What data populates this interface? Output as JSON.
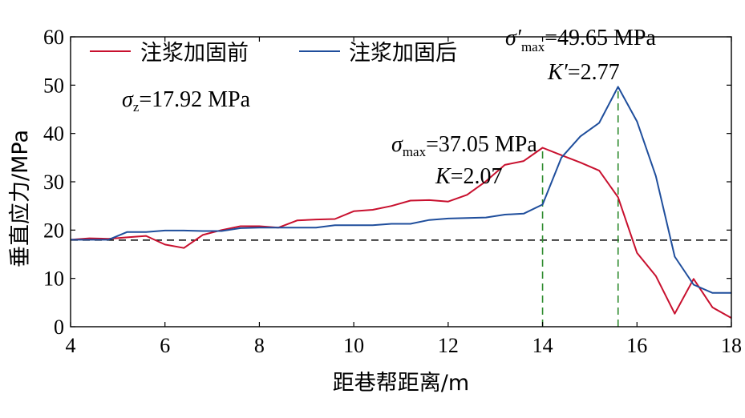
{
  "chart_data": {
    "type": "line",
    "xlabel": "距巷帮距离/m",
    "ylabel": "垂直应力/MPa",
    "xlim": [
      4,
      18
    ],
    "ylim": [
      0,
      60
    ],
    "x_ticks": [
      4,
      6,
      8,
      10,
      12,
      14,
      16,
      18
    ],
    "y_ticks": [
      0,
      10,
      20,
      30,
      40,
      50,
      60
    ],
    "grid": false,
    "legend_position": "top-left",
    "series": [
      {
        "name": "注浆加固前",
        "color": "#c8102e",
        "x": [
          4.0,
          4.4,
          4.8,
          5.2,
          5.6,
          6.0,
          6.4,
          6.8,
          7.2,
          7.6,
          8.0,
          8.4,
          8.8,
          9.2,
          9.6,
          10.0,
          10.4,
          10.8,
          11.2,
          11.6,
          12.0,
          12.4,
          12.8,
          13.2,
          13.6,
          14.0,
          14.4,
          14.8,
          15.2,
          15.6,
          16.0,
          16.4,
          16.8,
          17.2,
          17.6,
          18.0
        ],
        "y": [
          18.0,
          18.3,
          18.2,
          18.5,
          18.8,
          17.0,
          16.3,
          19.0,
          20.0,
          20.8,
          20.8,
          20.5,
          22.0,
          22.2,
          22.3,
          23.9,
          24.2,
          25.0,
          26.1,
          26.2,
          25.9,
          27.3,
          30.1,
          33.5,
          34.3,
          37.05,
          35.5,
          34.0,
          32.3,
          26.8,
          15.3,
          10.5,
          2.7,
          9.9,
          4.0,
          1.8
        ]
      },
      {
        "name": "注浆加固后",
        "color": "#1f4e9c",
        "x": [
          4.0,
          4.4,
          4.8,
          5.2,
          5.6,
          6.0,
          6.4,
          6.8,
          7.2,
          7.6,
          8.0,
          8.4,
          8.8,
          9.2,
          9.6,
          10.0,
          10.4,
          10.8,
          11.2,
          11.6,
          12.0,
          12.4,
          12.8,
          13.2,
          13.6,
          14.0,
          14.4,
          14.8,
          15.2,
          15.6,
          16.0,
          16.4,
          16.8,
          17.2,
          17.6,
          18.0
        ],
        "y": [
          18.0,
          18.0,
          18.0,
          19.6,
          19.6,
          19.9,
          19.9,
          19.8,
          19.8,
          20.4,
          20.5,
          20.5,
          20.5,
          20.5,
          21.0,
          21.0,
          21.0,
          21.3,
          21.3,
          22.1,
          22.4,
          22.5,
          22.6,
          23.2,
          23.4,
          25.3,
          35.0,
          39.4,
          42.2,
          49.65,
          42.5,
          31.2,
          14.5,
          8.7,
          7.0,
          7.0
        ]
      }
    ],
    "reference_lines": [
      {
        "axis": "y",
        "value": 17.92,
        "style": "dashed",
        "color": "#000000"
      },
      {
        "axis": "x",
        "value": 14.0,
        "from": 0,
        "to": 37.05,
        "style": "dashed",
        "color": "#2e8b2e"
      },
      {
        "axis": "x",
        "value": 15.6,
        "from": 0,
        "to": 49.65,
        "style": "dashed",
        "color": "#2e8b2e"
      }
    ],
    "annotations": [
      {
        "id": "sigma_z",
        "symbol": "σ",
        "sub": "z",
        "text": "=17.92 MPa"
      },
      {
        "id": "sigma_max",
        "symbol": "σ",
        "sub": "max",
        "text": "=37.05 MPa"
      },
      {
        "id": "k",
        "symbol": "K",
        "text": "=2.07"
      },
      {
        "id": "sigma_max_prime",
        "symbol": "σ′",
        "sub": "max",
        "text": "=49.65 MPa"
      },
      {
        "id": "k_prime",
        "symbol": "K′",
        "text": "=2.77"
      }
    ]
  }
}
